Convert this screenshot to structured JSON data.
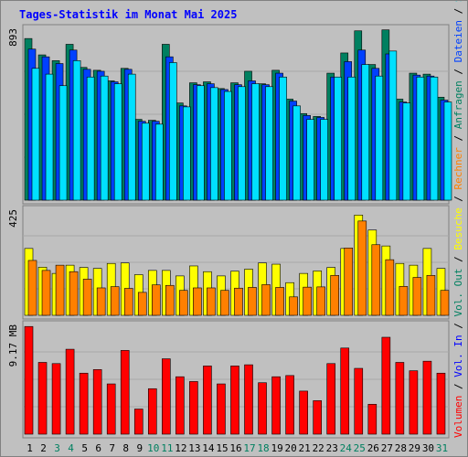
{
  "chart_data": {
    "type": "bar",
    "title": "Tages-Statistik im Monat Mai 2025",
    "categories": [
      "1",
      "2",
      "3",
      "4",
      "5",
      "6",
      "7",
      "8",
      "9",
      "10",
      "11",
      "12",
      "13",
      "14",
      "15",
      "16",
      "17",
      "18",
      "19",
      "20",
      "21",
      "22",
      "23",
      "24",
      "25",
      "26",
      "27",
      "28",
      "29",
      "30",
      "31"
    ],
    "weekend_days": [
      "3",
      "4",
      "10",
      "11",
      "17",
      "18",
      "24",
      "25",
      "31"
    ],
    "panels": [
      {
        "id": "top",
        "ymax": 893,
        "ytick_label": "893",
        "ylim": [
          0,
          893
        ],
        "series": [
          {
            "name": "Anfragen",
            "color": "#008060",
            "values": [
              840,
              755,
              725,
              810,
              690,
              675,
              620,
              685,
              420,
              415,
              810,
              505,
              610,
              615,
              580,
              610,
              670,
              605,
              675,
              525,
              450,
              435,
              660,
              765,
              880,
              705,
              885,
              525,
              660,
              655,
              535
            ]
          },
          {
            "name": "Dateien",
            "color": "#0040ff",
            "values": [
              785,
              745,
              710,
              780,
              680,
              670,
              615,
              680,
              410,
              410,
              745,
              490,
              600,
              605,
              575,
              600,
              620,
              600,
              660,
              515,
              440,
              430,
              640,
              720,
              780,
              685,
              760,
              510,
              650,
              645,
              520
            ]
          },
          {
            "name": "Seiten",
            "color": "#00e0ff",
            "values": [
              685,
              655,
              595,
              725,
              640,
              645,
              605,
              655,
              400,
              395,
              715,
              485,
              595,
              585,
              565,
              590,
              605,
              590,
              640,
              490,
              420,
              420,
              640,
              640,
              705,
              645,
              775,
              505,
              640,
              640,
              510
            ]
          }
        ],
        "right_labels": [
          {
            "text": "Anfragen",
            "color": "#008060"
          },
          {
            "text": "Dateien",
            "color": "#0040ff"
          },
          {
            "text": "Seiten",
            "color": "#00c0c0"
          }
        ]
      },
      {
        "id": "middle",
        "ymax": 425,
        "ytick_label": "425",
        "ylim": [
          0,
          425
        ],
        "series": [
          {
            "name": "Besuche",
            "color": "#ffff00",
            "values": [
              268,
              193,
              168,
              201,
              192,
              188,
              208,
              210,
              163,
              180,
              180,
              158,
              198,
              175,
              158,
              177,
              185,
              210,
              205,
              131,
              168,
              178,
              192,
              268,
              402,
              342,
              278,
              208,
              201,
              268,
              188
            ]
          },
          {
            "name": "Rechner",
            "color": "#ff8000",
            "values": [
              220,
              180,
              201,
              175,
              145,
              110,
              115,
              108,
              92,
              122,
              120,
              100,
              110,
              110,
              100,
              109,
              112,
              123,
              112,
              74,
              113,
              114,
              160,
              270,
              378,
              283,
              223,
              116,
              152,
              160,
              100
            ]
          }
        ],
        "right_labels": [
          {
            "text": "Besuche",
            "color": "#ffff00"
          },
          {
            "text": "Rechner",
            "color": "#ff8000"
          }
        ]
      },
      {
        "id": "bottom",
        "ymax": 9.17,
        "ytick_label": "9.17 MB",
        "ylim": [
          0,
          9.17
        ],
        "series": [
          {
            "name": "Volumen",
            "color": "#ff0000",
            "values": [
              9.0,
              6.0,
              5.9,
              7.1,
              5.1,
              5.4,
              4.2,
              7.0,
              2.1,
              3.8,
              6.3,
              4.8,
              4.4,
              5.7,
              4.2,
              5.7,
              5.8,
              4.3,
              4.8,
              4.9,
              3.6,
              2.8,
              5.9,
              7.2,
              5.5,
              2.5,
              8.1,
              6.0,
              5.3,
              6.1,
              5.1
            ]
          }
        ],
        "right_labels": [
          {
            "text": "Volumen",
            "color": "#ff0000"
          },
          {
            "text": "Vol. In",
            "color": "#0000ff"
          },
          {
            "text": "Vol. Out",
            "color": "#008060"
          }
        ]
      }
    ],
    "separator": "/"
  }
}
